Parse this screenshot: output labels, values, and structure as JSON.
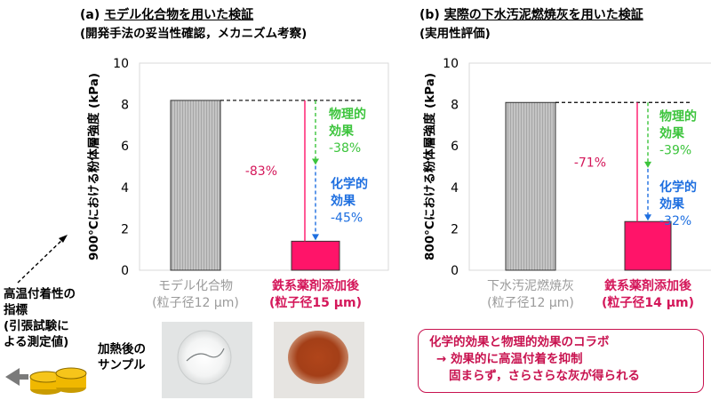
{
  "left": {
    "header_prefix": "(a)",
    "header_title": "モデル化合物を用いた検証",
    "header_sub": "(開発手法の妥当性確認，メカニズム考察)"
  },
  "right": {
    "header_prefix": "(b)",
    "header_title": "実際の下水汚泥燃焼灰を用いた検証",
    "header_sub": "(実用性評価)"
  },
  "side_note": {
    "line1": "高温付着性の",
    "line2": "指標",
    "line3": "(引張試験に",
    "line4": "よる測定値)"
  },
  "sample_label": {
    "line1": "加熱後の",
    "line2": "サンプル"
  },
  "conclusion": {
    "line1": "化学的効果と物理的効果のコラボ",
    "arrow": "→",
    "line2": "効果的に高温付着を抑制",
    "line3": "固まらず，さらさらな灰が得られる"
  },
  "colors": {
    "gray_bar": "#bdbdbd",
    "pink": "#ff1469",
    "green": "#3cc43c",
    "blue": "#1e6fe0",
    "magenta_text": "#d4175a"
  },
  "chart_data": [
    {
      "type": "bar",
      "ylabel": "900°Cにおける粉体層強度 (kPa)",
      "ylim": [
        0,
        10
      ],
      "yticks": [
        0,
        2,
        4,
        6,
        8,
        10
      ],
      "categories": [
        {
          "line1": "モデル化合物",
          "line2": "(粒子径12 μm)"
        },
        {
          "line1": "鉄系薬剤添加後",
          "line2": "(粒子径15 μm)"
        }
      ],
      "values": [
        8.2,
        1.4
      ],
      "annotations": {
        "total": "-83%",
        "physical_l1": "物理的",
        "physical_l2": "効果",
        "physical_l3": "-38%",
        "chemical_l1": "化学的",
        "chemical_l2": "効果",
        "chemical_l3": "-45%"
      }
    },
    {
      "type": "bar",
      "ylabel": "800°Cにおける粉体層強度 (kPa)",
      "ylim": [
        0,
        10
      ],
      "yticks": [
        0,
        2,
        4,
        6,
        8,
        10
      ],
      "categories": [
        {
          "line1": "下水汚泥燃焼灰",
          "line2": "(粒子径12 μm)"
        },
        {
          "line1": "鉄系薬剤添加後",
          "line2": "(粒子径14 μm)"
        }
      ],
      "values": [
        8.1,
        2.35
      ],
      "annotations": {
        "total": "-71%",
        "physical_l1": "物理的",
        "physical_l2": "効果",
        "physical_l3": "-39%",
        "chemical_l1": "化学的",
        "chemical_l2": "効果",
        "chemical_l3": "-32%"
      }
    }
  ]
}
